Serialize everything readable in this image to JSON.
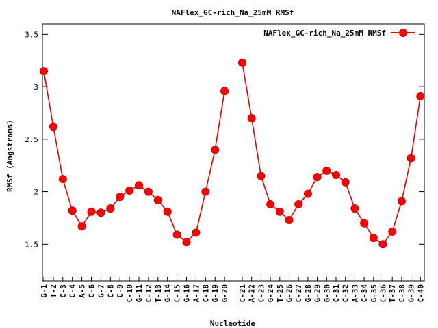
{
  "chart_data": {
    "type": "line",
    "title": "NAFlex_GC-rich_Na_25mM RMSf",
    "xlabel": "Nucleotide",
    "ylabel": "RMSf (Angstroms)",
    "ylim": [
      1.15,
      3.6
    ],
    "yticks": [
      1.5,
      2,
      2.5,
      3,
      3.5
    ],
    "ytick_labels": [
      "1.5",
      "2",
      "2.5",
      "3",
      "3.5"
    ],
    "grid": false,
    "legend_position": "top-right",
    "categories": [
      "G-1",
      "T-2",
      "C-3",
      "C-4",
      "A-5",
      "C-6",
      "G-7",
      "C-8",
      "C-9",
      "C-10",
      "G-11",
      "C-12",
      "T-13",
      "G-14",
      "C-15",
      "G-16",
      "A-17",
      "C-18",
      "G-19",
      "G-20",
      "C-21",
      "A-22",
      "C-23",
      "G-24",
      "T-25",
      "G-26",
      "C-27",
      "G-28",
      "G-29",
      "G-30",
      "C-31",
      "C-32",
      "A-33",
      "C-34",
      "G-35",
      "C-36",
      "T-37",
      "C-38",
      "G-39",
      "C-40"
    ],
    "series": [
      {
        "name": "NAFlex_GC-rich_Na_25mM RMSf",
        "color": "#ff0000",
        "segments": [
          [
            3.15,
            2.62,
            2.12,
            1.82,
            1.67,
            1.81,
            1.8,
            1.84,
            1.95,
            2.01,
            2.06,
            2.0,
            1.92,
            1.81,
            1.59,
            1.52,
            1.61,
            2.0,
            2.4,
            2.96
          ],
          [
            3.23,
            2.7,
            2.15,
            1.88,
            1.81,
            1.73,
            1.88,
            1.98,
            2.14,
            2.2,
            2.16,
            2.09,
            1.84,
            1.7,
            1.56,
            1.5,
            1.62,
            1.91,
            2.32,
            2.91
          ]
        ]
      }
    ]
  }
}
